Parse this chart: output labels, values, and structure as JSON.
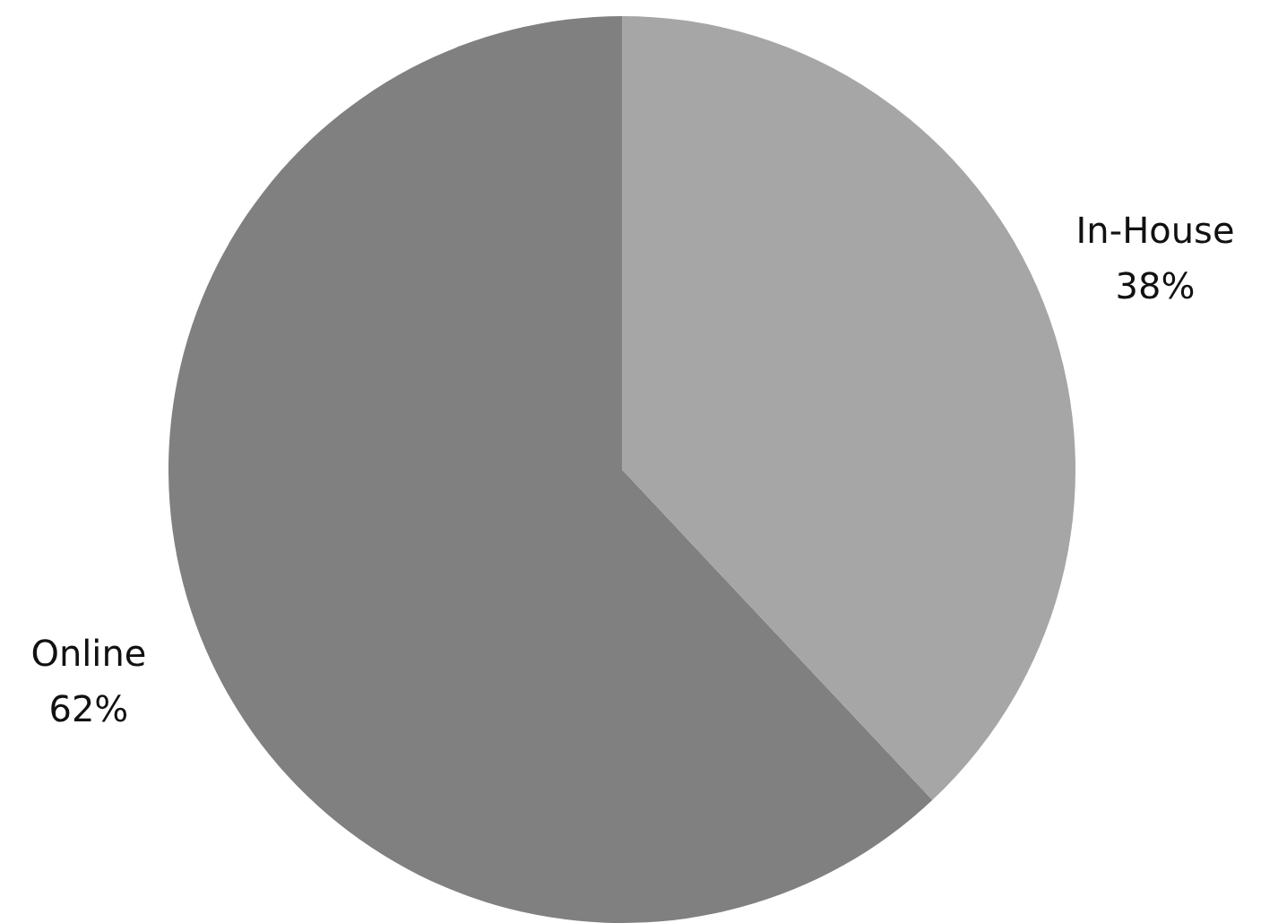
{
  "chart_data": {
    "type": "pie",
    "categories": [
      "In-House",
      "Online"
    ],
    "values": [
      38,
      62
    ],
    "colors": [
      "#a6a6a6",
      "#808080"
    ],
    "value_labels": [
      "38%",
      "62%"
    ]
  }
}
